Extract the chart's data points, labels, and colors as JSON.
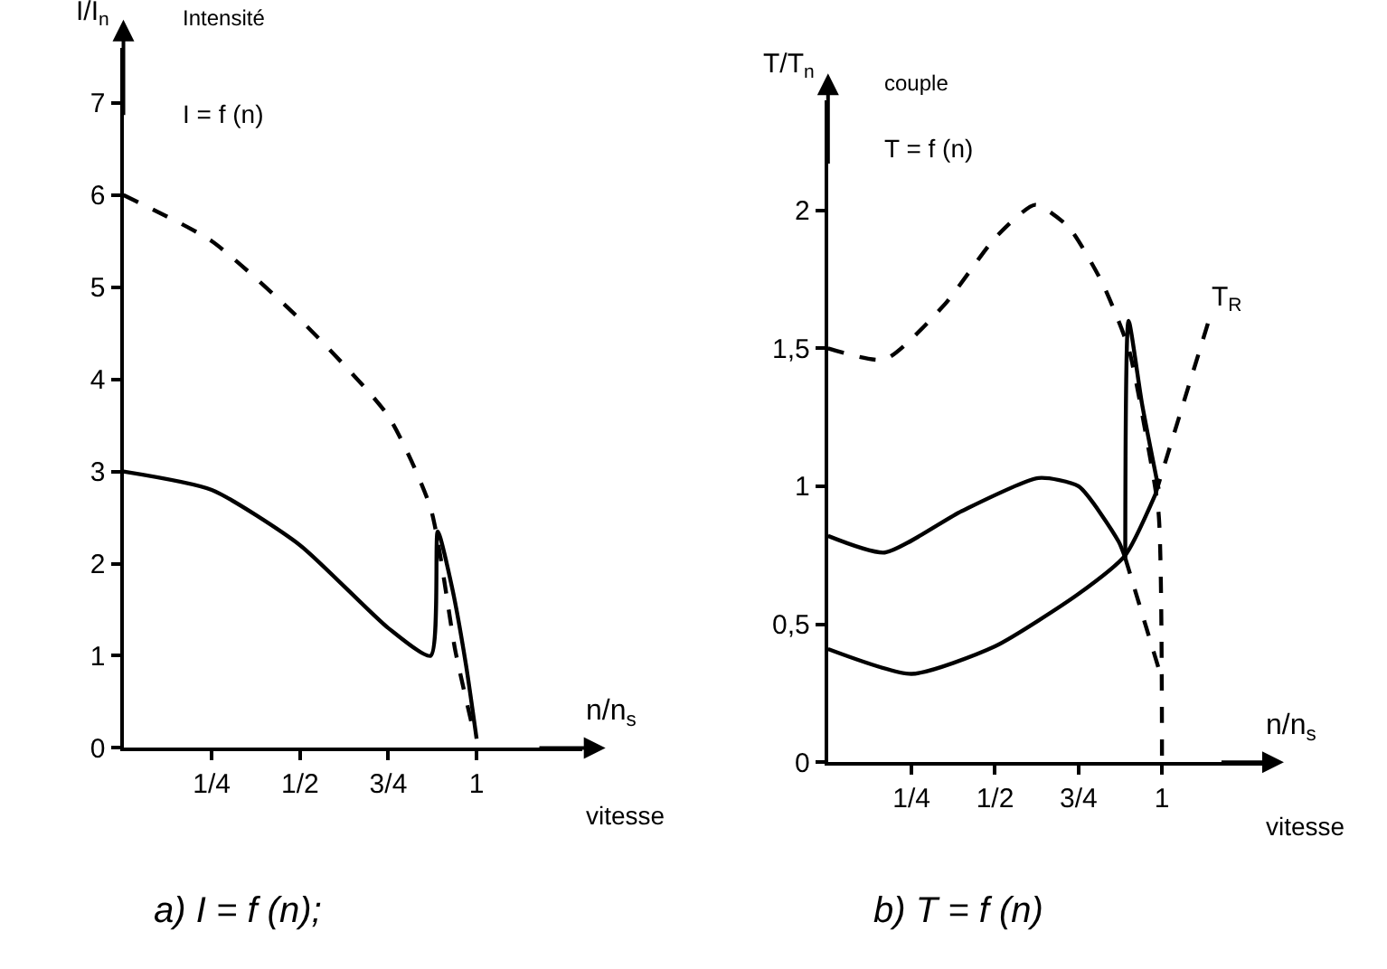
{
  "chart_data": [
    {
      "type": "line",
      "xlabel": "n/n$_{s}$",
      "ylabel": "I/I$_{n}$",
      "xlim": [
        0,
        1.3
      ],
      "ylim": [
        0,
        7.6
      ],
      "xticks": [
        {
          "value": 0.25,
          "label": "1/4"
        },
        {
          "value": 0.5,
          "label": "1/2"
        },
        {
          "value": 0.75,
          "label": "3/4"
        },
        1
      ],
      "yticks": [
        0,
        1,
        2,
        3,
        4,
        5,
        6,
        7
      ],
      "annotations": [
        "Intensité",
        "I = f (n)",
        "vitesse",
        "a) I = f (n);"
      ],
      "series": [
        {
          "color": "#000000",
          "line_style": "dashed",
          "x": [
            0,
            0.25,
            0.5,
            0.75,
            0.87,
            0.94,
            0.99
          ],
          "values": [
            6,
            5.5,
            4.65,
            3.6,
            2.6,
            1.05,
            0.2
          ]
        },
        {
          "color": "#000000",
          "line_style": "solid",
          "x": [
            0,
            0.25,
            0.5,
            0.75,
            0.87,
            0.89,
            0.93,
            0.97,
            1.0
          ],
          "values": [
            3,
            2.8,
            2.2,
            1.3,
            1.0,
            2.35,
            1.75,
            0.9,
            0.1
          ]
        }
      ]
    },
    {
      "type": "line",
      "xlabel": "n/n$_{s}$",
      "ylabel": "T/T$_{n}$",
      "xlim": [
        0,
        1.3
      ],
      "ylim": [
        0,
        2.4
      ],
      "xticks": [
        {
          "value": 0.25,
          "label": "1/4"
        },
        {
          "value": 0.5,
          "label": "1/2"
        },
        {
          "value": 0.75,
          "label": "3/4"
        },
        1
      ],
      "yticks": [
        0,
        {
          "value": 0.5,
          "label": "0,5"
        },
        1,
        {
          "value": 1.5,
          "label": "1,5"
        },
        2
      ],
      "annotations": [
        "couple",
        "T = f (n)",
        "vitesse",
        {
          "text": "T$_{R}$",
          "x": 1.14,
          "y": 1.6
        },
        "b) T = f (n)"
      ],
      "series": [
        {
          "color": "#000000",
          "line_style": "dashed",
          "x": [
            0,
            0.17,
            0.35,
            0.5,
            0.62,
            0.72,
            0.82,
            0.9,
            0.95,
            0.99,
            1.0
          ],
          "values": [
            1.5,
            1.46,
            1.66,
            1.9,
            2.02,
            1.94,
            1.74,
            1.5,
            1.2,
            0.9,
            0
          ]
        },
        {
          "color": "#000000",
          "line_style": "solid",
          "x": [
            0,
            0.17,
            0.4,
            0.63,
            0.75,
            0.87,
            0.89
          ],
          "values": [
            0.82,
            0.76,
            0.91,
            1.03,
            1.0,
            0.8,
            0.74
          ]
        },
        {
          "color": "#000000",
          "line_style": "dashed",
          "x": [
            0.89,
            0.95,
            1.0
          ],
          "values": [
            0.74,
            0.5,
            0.3
          ]
        },
        {
          "color": "#000000",
          "line_style": "solid",
          "x": [
            0,
            0.25,
            0.5,
            0.75,
            0.89,
            0.98
          ],
          "values": [
            0.41,
            0.32,
            0.42,
            0.61,
            0.75,
            0.97
          ]
        },
        {
          "color": "#000000",
          "line_style": "dashed",
          "x": [
            0.98,
            1.14
          ],
          "values": [
            0.97,
            1.6
          ]
        },
        {
          "color": "#000000",
          "line_style": "solid",
          "x": [
            0.89,
            0.9,
            0.94,
            0.99
          ],
          "values": [
            0.74,
            1.6,
            1.3,
            0.99
          ]
        }
      ]
    }
  ]
}
